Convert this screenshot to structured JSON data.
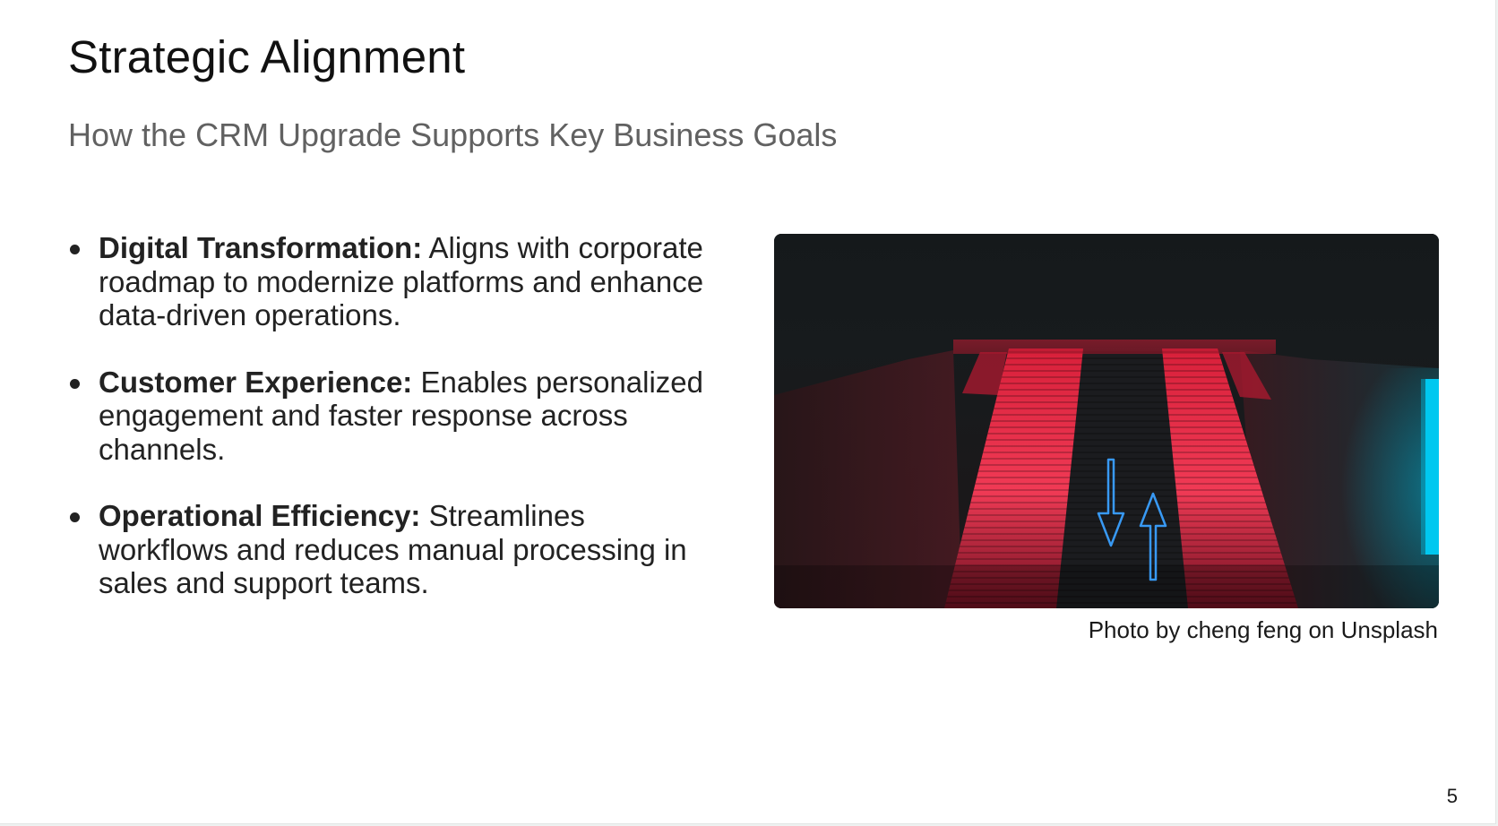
{
  "slide": {
    "title": "Strategic Alignment",
    "subtitle": "How the CRM Upgrade Supports Key Business Goals",
    "bullets": [
      {
        "label": "Digital Transformation:",
        "text": " Aligns with corporate roadmap to modernize platforms and enhance data-driven operations."
      },
      {
        "label": "Customer Experience:",
        "text": " Enables personalized engagement and faster response across channels."
      },
      {
        "label": "Operational Efficiency:",
        "text": " Streamlines workflows and reduces manual processing in sales and support teams."
      }
    ],
    "image": {
      "credit": "Photo by cheng feng on Unsplash"
    },
    "page_number": "5"
  },
  "colors": {
    "title": "#111111",
    "subtitle": "#616161",
    "body_text": "#222222",
    "photo_red": "#e8233f",
    "photo_blue_neon": "#1e90ff",
    "photo_cyan": "#00c8f0"
  }
}
